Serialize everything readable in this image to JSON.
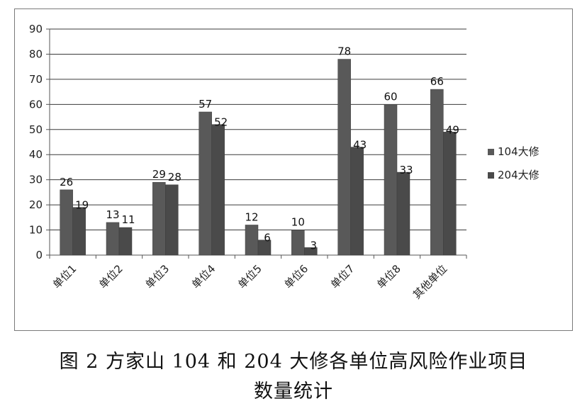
{
  "caption": {
    "line1": "图 2  方家山 104 和 204 大修各单位高风险作业项目",
    "line2": "数量统计"
  },
  "chart_data": {
    "type": "bar",
    "categories": [
      "单位1",
      "单位2",
      "单位3",
      "单位4",
      "单位5",
      "单位6",
      "单位7",
      "单位8",
      "其他单位"
    ],
    "series": [
      {
        "name": "104大修",
        "values": [
          26,
          13,
          29,
          57,
          12,
          10,
          78,
          60,
          66
        ],
        "color": "#595959"
      },
      {
        "name": "204大修",
        "values": [
          19,
          11,
          28,
          52,
          6,
          3,
          43,
          33,
          49
        ],
        "color": "#4a4a4a"
      }
    ],
    "ylim": [
      0,
      90
    ],
    "yticks": [
      0,
      10,
      20,
      30,
      40,
      50,
      60,
      70,
      80,
      90
    ],
    "grid": true,
    "legend_position": "right",
    "title": "",
    "xlabel": "",
    "ylabel": ""
  }
}
